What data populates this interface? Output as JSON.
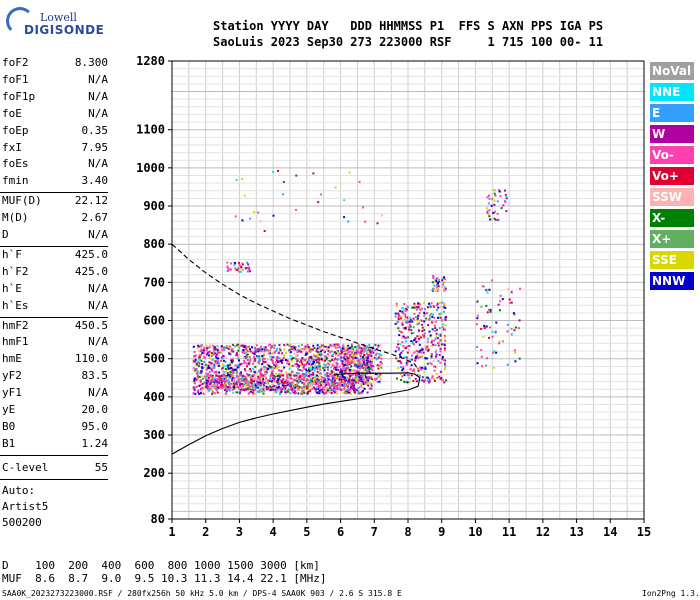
{
  "logo": {
    "line1": "Lowell",
    "line2": "DIGISONDE"
  },
  "header": {
    "row1": "Station YYYY DAY   DDD HHMMSS P1  FFS S AXN PPS IGA PS",
    "row2": "SaoLuis 2023 Sep30 273 223000 RSF     1 715 100 00- 11"
  },
  "params_a": [
    {
      "name": "foF2",
      "value": "8.300"
    },
    {
      "name": "foF1",
      "value": "N/A"
    },
    {
      "name": "foF1p",
      "value": "N/A"
    },
    {
      "name": "foE",
      "value": "N/A"
    },
    {
      "name": "foEp",
      "value": "0.35"
    },
    {
      "name": "fxI",
      "value": "7.95"
    },
    {
      "name": "foEs",
      "value": "N/A"
    },
    {
      "name": "fmin",
      "value": "3.40"
    }
  ],
  "params_b": [
    {
      "name": "MUF(D)",
      "value": "22.12"
    },
    {
      "name": "M(D)",
      "value": "2.67"
    },
    {
      "name": "D",
      "value": "N/A"
    }
  ],
  "params_c": [
    {
      "name": "h`F",
      "value": "425.0"
    },
    {
      "name": "h`F2",
      "value": "425.0"
    },
    {
      "name": "h`E",
      "value": "N/A"
    },
    {
      "name": "h`Es",
      "value": "N/A"
    }
  ],
  "params_d": [
    {
      "name": "hmF2",
      "value": "450.5"
    },
    {
      "name": "hmF1",
      "value": "N/A"
    },
    {
      "name": "hmE",
      "value": "110.0"
    },
    {
      "name": "yF2",
      "value": "83.5"
    },
    {
      "name": "yF1",
      "value": "N/A"
    },
    {
      "name": "yE",
      "value": "20.0"
    },
    {
      "name": "B0",
      "value": "95.0"
    },
    {
      "name": "B1",
      "value": "1.24"
    }
  ],
  "clevel": {
    "name": "C-level",
    "value": "55"
  },
  "autoscale": {
    "line1": "Auto:",
    "line2": "Artist5",
    "line3": "500200"
  },
  "legend": [
    {
      "label": "NoVal",
      "color": "#a0a0a0"
    },
    {
      "label": "NNE",
      "color": "#00e6ff"
    },
    {
      "label": "E",
      "color": "#33a0ff"
    },
    {
      "label": "W",
      "color": "#b000a0"
    },
    {
      "label": "Vo-",
      "color": "#ff40b0"
    },
    {
      "label": "Vo+",
      "color": "#e00030"
    },
    {
      "label": "SSW",
      "color": "#ffb0b0"
    },
    {
      "label": "X-",
      "color": "#008000"
    },
    {
      "label": "X+",
      "color": "#60b060"
    },
    {
      "label": "SSE",
      "color": "#d8d800"
    },
    {
      "label": "NNW",
      "color": "#0000d0"
    }
  ],
  "muf_table": {
    "row1": "D    100  200  400  600  800 1000 1500 3000 [km]",
    "row2": "MUF  8.6  8.7  9.0  9.5 10.3 11.3 14.4 22.1 [MHz]"
  },
  "footer": {
    "left": "SAA0K_2023273223000.RSF / 280fx256h 50 kHz 5.0 km / DPS-4 SAA0K 903 / 2.6 S 315.8 E",
    "right": "Ion2Png 1.3.17"
  },
  "chart_data": {
    "type": "scatter",
    "title": "",
    "xlabel": "",
    "ylabel": "",
    "xlim": [
      1,
      15
    ],
    "ylim": [
      80,
      1280
    ],
    "x_ticks": [
      1,
      2,
      3,
      4,
      5,
      6,
      7,
      8,
      9,
      10,
      11,
      12,
      13,
      14,
      15
    ],
    "y_ticks": [
      80,
      200,
      300,
      400,
      500,
      600,
      700,
      800,
      900,
      1000,
      1100,
      1280
    ],
    "grid": true,
    "echo_clusters": [
      {
        "x0": 1.6,
        "x1": 6.9,
        "y0": 410,
        "y1": 540,
        "count": 1600
      },
      {
        "x0": 2.0,
        "x1": 6.5,
        "y0": 420,
        "y1": 460,
        "count": 500
      },
      {
        "x0": 6.0,
        "x1": 7.2,
        "y0": 440,
        "y1": 540,
        "count": 250
      },
      {
        "x0": 7.6,
        "x1": 9.1,
        "y0": 440,
        "y1": 650,
        "count": 400
      },
      {
        "x0": 8.7,
        "x1": 9.1,
        "y0": 680,
        "y1": 720,
        "count": 40
      },
      {
        "x0": 2.6,
        "x1": 3.3,
        "y0": 730,
        "y1": 755,
        "count": 40
      },
      {
        "x0": 10.3,
        "x1": 10.9,
        "y0": 865,
        "y1": 945,
        "count": 40
      },
      {
        "x0": 10.0,
        "x1": 11.3,
        "y0": 475,
        "y1": 710,
        "count": 70
      },
      {
        "x0": 2.8,
        "x1": 7.2,
        "y0": 830,
        "y1": 1000,
        "count": 30
      }
    ],
    "series": [
      {
        "style": "dashed",
        "points": [
          [
            1.0,
            800
          ],
          [
            1.5,
            760
          ],
          [
            2.0,
            725
          ],
          [
            2.5,
            695
          ],
          [
            3.0,
            668
          ],
          [
            3.5,
            645
          ],
          [
            4.0,
            625
          ],
          [
            4.5,
            605
          ],
          [
            5.0,
            588
          ],
          [
            5.5,
            571
          ],
          [
            6.0,
            556
          ],
          [
            6.5,
            541
          ],
          [
            7.0,
            526
          ],
          [
            7.5,
            512
          ],
          [
            7.8,
            503
          ],
          [
            8.0,
            495
          ],
          [
            8.2,
            486
          ],
          [
            8.3,
            470
          ]
        ]
      },
      {
        "style": "solid",
        "points": [
          [
            1.0,
            250
          ],
          [
            1.5,
            275
          ],
          [
            2.0,
            298
          ],
          [
            2.5,
            317
          ],
          [
            3.0,
            333
          ],
          [
            3.5,
            345
          ],
          [
            4.0,
            355
          ],
          [
            4.5,
            364
          ],
          [
            5.0,
            373
          ],
          [
            5.5,
            381
          ],
          [
            6.0,
            388
          ],
          [
            6.5,
            395
          ],
          [
            7.0,
            401
          ],
          [
            7.5,
            410
          ],
          [
            8.0,
            418
          ],
          [
            8.3,
            428
          ],
          [
            8.35,
            450
          ],
          [
            8.2,
            460
          ],
          [
            8.0,
            463
          ],
          [
            7.5,
            462
          ],
          [
            7.0,
            462
          ],
          [
            6.5,
            462
          ],
          [
            6.0,
            460
          ],
          [
            5.8,
            457
          ]
        ]
      }
    ]
  }
}
